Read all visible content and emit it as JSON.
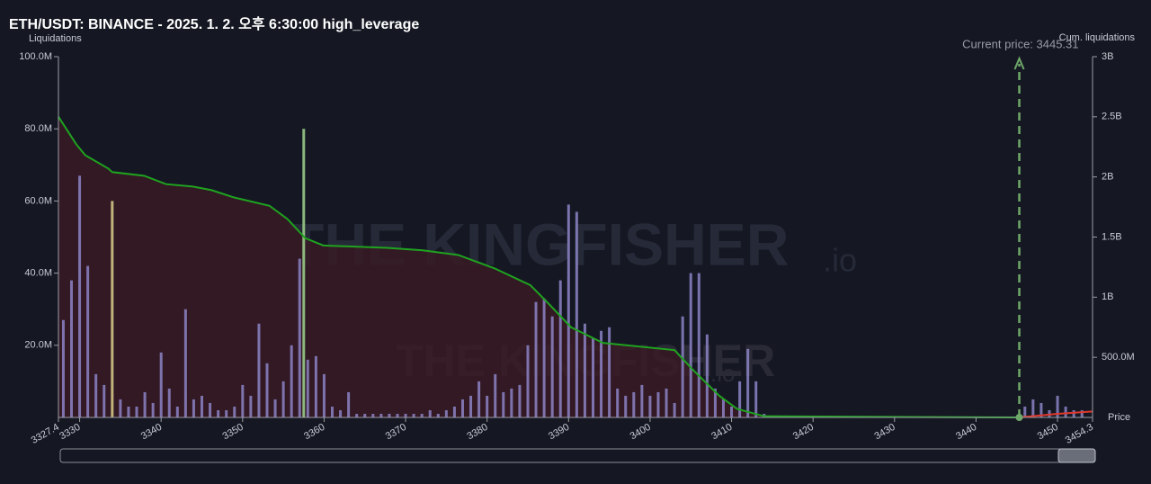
{
  "chart_data": {
    "type": "bar",
    "title": "ETH/USDT: BINANCE - 2025. 1. 2. 오후 6:30:00 high_leverage",
    "y_label": "Liquidations",
    "y2_label": "Cum. liquidations",
    "x_label": "Price",
    "watermark": {
      "text": "THE KINGFISHER",
      "suffix": ".io"
    },
    "current_price": {
      "value": 3445.31,
      "label": "Current price: 3445.31",
      "color": "#6fa86a"
    },
    "xlim": [
      3327.4,
      3454.3
    ],
    "xticks": [
      3327.4,
      3330,
      3340,
      3350,
      3360,
      3370,
      3380,
      3390,
      3400,
      3410,
      3420,
      3430,
      3440,
      3450,
      3454.3
    ],
    "ylim": [
      0,
      100000000
    ],
    "yticks": [
      {
        "value": 20000000,
        "label": "20.0M"
      },
      {
        "value": 40000000,
        "label": "40.0M"
      },
      {
        "value": 60000000,
        "label": "60.0M"
      },
      {
        "value": 80000000,
        "label": "80.0M"
      },
      {
        "value": 100000000,
        "label": "100.0M"
      }
    ],
    "y2lim": [
      0,
      3000000000
    ],
    "y2ticks": [
      {
        "value": 500000000,
        "label": "500.0M"
      },
      {
        "value": 1000000000,
        "label": "1B"
      },
      {
        "value": 1500000000,
        "label": "1.5B"
      },
      {
        "value": 2000000000,
        "label": "2B"
      },
      {
        "value": 2500000000,
        "label": "2.5B"
      },
      {
        "value": 3000000000,
        "label": "3B"
      }
    ],
    "series": [
      {
        "color": "#8c84c6",
        "x": [
          3328,
          3329,
          3330,
          3331,
          3332,
          3333,
          3335,
          3336,
          3337,
          3338,
          3339,
          3340,
          3341,
          3342,
          3343,
          3344,
          3345,
          3346,
          3347,
          3348,
          3349,
          3350,
          3351,
          3352,
          3353,
          3354,
          3355,
          3356,
          3357,
          3358,
          3359,
          3360,
          3361,
          3362,
          3363,
          3364,
          3365,
          3366,
          3367,
          3368,
          3369,
          3370,
          3371,
          3372,
          3373,
          3374,
          3375,
          3376,
          3377,
          3378,
          3379,
          3380,
          3381,
          3382,
          3383,
          3384,
          3385,
          3386,
          3387,
          3388,
          3389,
          3390,
          3391,
          3392,
          3393,
          3394,
          3395,
          3396,
          3397,
          3398,
          3399,
          3400,
          3401,
          3402,
          3403,
          3404,
          3405,
          3406,
          3407,
          3408,
          3409,
          3410,
          3411,
          3412,
          3413,
          3414,
          3446,
          3447,
          3448,
          3449,
          3450,
          3451,
          3452,
          3453
        ],
        "values": [
          27000000,
          38000000,
          67000000,
          42000000,
          12000000,
          9000000,
          5000000,
          3000000,
          3000000,
          7000000,
          4000000,
          18000000,
          8000000,
          3000000,
          30000000,
          5000000,
          6000000,
          4000000,
          2000000,
          2000000,
          3000000,
          9000000,
          6000000,
          26000000,
          15000000,
          5000000,
          10000000,
          20000000,
          44000000,
          16000000,
          17000000,
          12000000,
          3000000,
          2000000,
          7000000,
          1000000,
          1000000,
          1000000,
          1000000,
          1000000,
          1000000,
          1000000,
          1000000,
          1000000,
          2000000,
          1000000,
          2000000,
          3000000,
          5000000,
          6000000,
          10000000,
          6000000,
          12000000,
          7000000,
          8000000,
          9000000,
          20000000,
          32000000,
          33000000,
          28000000,
          38000000,
          59000000,
          57000000,
          26000000,
          22000000,
          24000000,
          25000000,
          8000000,
          6000000,
          7000000,
          9000000,
          6000000,
          7000000,
          8000000,
          4000000,
          28000000,
          40000000,
          40000000,
          23000000,
          8000000,
          5000000,
          3000000,
          10000000,
          19000000,
          10000000,
          1000000,
          3000000,
          5000000,
          4000000,
          2000000,
          6000000,
          3000000,
          2000000,
          2000000
        ]
      },
      {
        "color": "#d9d08a",
        "x": [
          3334
        ],
        "values": [
          60000000
        ]
      },
      {
        "color": "#9ed48c",
        "x": [
          3357.5
        ],
        "values": [
          80000000
        ]
      },
      {
        "type": "line",
        "axis": "y2",
        "color": "#1fa31f",
        "fill": "#3a1a24",
        "x": [
          3327.4,
          3329.6,
          3330.7,
          3333.5,
          3334.0,
          3337.9,
          3340.6,
          3343.9,
          3346.2,
          3348.9,
          3353.3,
          3355.5,
          3357.7,
          3359.9,
          3367.7,
          3372.1,
          3376.5,
          3380.9,
          3385.3,
          3387.5,
          3390.3,
          3394.2,
          3403.0,
          3405.2,
          3408.5,
          3410.7,
          3414.0,
          3445.3
        ],
        "values": [
          2500000000,
          2270000000,
          2180000000,
          2070000000,
          2040000000,
          2010000000,
          1940000000,
          1920000000,
          1890000000,
          1830000000,
          1760000000,
          1650000000,
          1490000000,
          1430000000,
          1410000000,
          1390000000,
          1350000000,
          1240000000,
          1100000000,
          950000000,
          750000000,
          620000000,
          560000000,
          400000000,
          180000000,
          70000000,
          10000000,
          0
        ]
      },
      {
        "type": "line",
        "axis": "y2",
        "color": "#e0382c",
        "x": [
          3445.3,
          3450,
          3454.3
        ],
        "values": [
          0,
          30000000,
          50000000
        ]
      }
    ]
  }
}
